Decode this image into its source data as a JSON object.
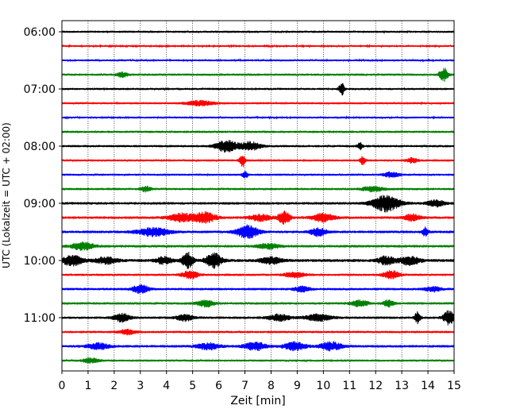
{
  "chart_data": {
    "type": "line",
    "title": "",
    "xlabel": "Zeit  [min]",
    "ylabel": "UTC (Lokalzeit = UTC + 02:00)",
    "xlim": [
      0,
      15
    ],
    "x_ticks": [
      "0",
      "1",
      "2",
      "3",
      "4",
      "5",
      "6",
      "7",
      "8",
      "9",
      "10",
      "11",
      "12",
      "13",
      "14",
      "15"
    ],
    "y_ticks": [
      {
        "label": "06:00",
        "trace": 0
      },
      {
        "label": "07:00",
        "trace": 4
      },
      {
        "label": "08:00",
        "trace": 8
      },
      {
        "label": "09:00",
        "trace": 12
      },
      {
        "label": "10:00",
        "trace": 16
      },
      {
        "label": "11:00",
        "trace": 20
      }
    ],
    "vertical_grid": true,
    "color_cycle": [
      "#000000",
      "#ff0000",
      "#0000ff",
      "#008000"
    ],
    "traces": [
      {
        "start": "06:00",
        "noise": 1.3,
        "events": []
      },
      {
        "start": "06:15",
        "noise": 1.1,
        "events": []
      },
      {
        "start": "06:30",
        "noise": 1.2,
        "events": []
      },
      {
        "start": "06:45",
        "noise": 1.4,
        "events": [
          {
            "t": 2.3,
            "amp": 3,
            "dur": 0.2
          },
          {
            "t": 14.6,
            "amp": 9,
            "dur": 0.15
          }
        ]
      },
      {
        "start": "07:00",
        "noise": 1.3,
        "events": [
          {
            "t": 10.7,
            "amp": 8,
            "dur": 0.1
          }
        ]
      },
      {
        "start": "07:15",
        "noise": 1.3,
        "events": [
          {
            "t": 5.3,
            "amp": 3,
            "dur": 0.5
          }
        ]
      },
      {
        "start": "07:30",
        "noise": 1.2,
        "events": []
      },
      {
        "start": "07:45",
        "noise": 1.4,
        "events": []
      },
      {
        "start": "08:00",
        "noise": 1.4,
        "events": [
          {
            "t": 6.3,
            "amp": 7,
            "dur": 0.4
          },
          {
            "t": 7.2,
            "amp": 5,
            "dur": 0.4
          },
          {
            "t": 11.4,
            "amp": 4,
            "dur": 0.1
          }
        ]
      },
      {
        "start": "08:15",
        "noise": 1.3,
        "events": [
          {
            "t": 6.9,
            "amp": 9,
            "dur": 0.1
          },
          {
            "t": 11.5,
            "amp": 5,
            "dur": 0.1
          },
          {
            "t": 13.4,
            "amp": 3,
            "dur": 0.2
          }
        ]
      },
      {
        "start": "08:30",
        "noise": 1.3,
        "events": [
          {
            "t": 7.0,
            "amp": 5,
            "dur": 0.1
          },
          {
            "t": 12.6,
            "amp": 3,
            "dur": 0.3
          }
        ]
      },
      {
        "start": "08:45",
        "noise": 1.4,
        "events": [
          {
            "t": 3.2,
            "amp": 3,
            "dur": 0.2
          },
          {
            "t": 11.9,
            "amp": 3,
            "dur": 0.4
          }
        ]
      },
      {
        "start": "09:00",
        "noise": 1.6,
        "events": [
          {
            "t": 12.4,
            "amp": 10,
            "dur": 0.5
          },
          {
            "t": 14.3,
            "amp": 4,
            "dur": 0.3
          }
        ]
      },
      {
        "start": "09:15",
        "noise": 1.6,
        "events": [
          {
            "t": 4.6,
            "amp": 5,
            "dur": 0.5
          },
          {
            "t": 5.5,
            "amp": 6,
            "dur": 0.4
          },
          {
            "t": 7.6,
            "amp": 4,
            "dur": 0.4
          },
          {
            "t": 8.5,
            "amp": 9,
            "dur": 0.2
          },
          {
            "t": 10.0,
            "amp": 5,
            "dur": 0.4
          },
          {
            "t": 13.4,
            "amp": 4,
            "dur": 0.3
          }
        ]
      },
      {
        "start": "09:30",
        "noise": 1.6,
        "events": [
          {
            "t": 3.5,
            "amp": 5,
            "dur": 0.6
          },
          {
            "t": 7.1,
            "amp": 8,
            "dur": 0.4
          },
          {
            "t": 9.8,
            "amp": 5,
            "dur": 0.3
          },
          {
            "t": 13.9,
            "amp": 6,
            "dur": 0.1
          }
        ]
      },
      {
        "start": "09:45",
        "noise": 1.6,
        "events": [
          {
            "t": 0.8,
            "amp": 5,
            "dur": 0.4
          },
          {
            "t": 7.9,
            "amp": 3,
            "dur": 0.4
          }
        ]
      },
      {
        "start": "10:00",
        "noise": 1.8,
        "events": [
          {
            "t": 0.4,
            "amp": 6,
            "dur": 0.4
          },
          {
            "t": 1.7,
            "amp": 4,
            "dur": 0.4
          },
          {
            "t": 3.9,
            "amp": 4,
            "dur": 0.3
          },
          {
            "t": 4.8,
            "amp": 10,
            "dur": 0.2
          },
          {
            "t": 5.8,
            "amp": 9,
            "dur": 0.3
          },
          {
            "t": 8.0,
            "amp": 4,
            "dur": 0.4
          },
          {
            "t": 12.4,
            "amp": 5,
            "dur": 0.3
          },
          {
            "t": 13.3,
            "amp": 5,
            "dur": 0.4
          }
        ]
      },
      {
        "start": "10:15",
        "noise": 1.4,
        "events": [
          {
            "t": 4.9,
            "amp": 5,
            "dur": 0.3
          },
          {
            "t": 8.9,
            "amp": 3,
            "dur": 0.4
          },
          {
            "t": 12.6,
            "amp": 5,
            "dur": 0.3
          }
        ]
      },
      {
        "start": "10:30",
        "noise": 1.5,
        "events": [
          {
            "t": 3.0,
            "amp": 5,
            "dur": 0.3
          },
          {
            "t": 9.2,
            "amp": 3,
            "dur": 0.3
          },
          {
            "t": 14.2,
            "amp": 3,
            "dur": 0.3
          }
        ]
      },
      {
        "start": "10:45",
        "noise": 1.5,
        "events": [
          {
            "t": 5.5,
            "amp": 4,
            "dur": 0.3
          },
          {
            "t": 11.4,
            "amp": 4,
            "dur": 0.3
          },
          {
            "t": 12.5,
            "amp": 4,
            "dur": 0.2
          }
        ]
      },
      {
        "start": "11:00",
        "noise": 1.5,
        "events": [
          {
            "t": 2.3,
            "amp": 5,
            "dur": 0.3
          },
          {
            "t": 4.7,
            "amp": 4,
            "dur": 0.3
          },
          {
            "t": 8.3,
            "amp": 4,
            "dur": 0.4
          },
          {
            "t": 9.8,
            "amp": 4,
            "dur": 0.5
          },
          {
            "t": 13.6,
            "amp": 7,
            "dur": 0.1
          },
          {
            "t": 14.8,
            "amp": 9,
            "dur": 0.2
          }
        ]
      },
      {
        "start": "11:15",
        "noise": 1.4,
        "events": [
          {
            "t": 2.5,
            "amp": 3,
            "dur": 0.3
          }
        ]
      },
      {
        "start": "11:30",
        "noise": 1.6,
        "events": [
          {
            "t": 1.4,
            "amp": 4,
            "dur": 0.4
          },
          {
            "t": 5.6,
            "amp": 4,
            "dur": 0.4
          },
          {
            "t": 7.4,
            "amp": 5,
            "dur": 0.4
          },
          {
            "t": 8.9,
            "amp": 5,
            "dur": 0.4
          },
          {
            "t": 10.3,
            "amp": 5,
            "dur": 0.4
          }
        ]
      },
      {
        "start": "11:45",
        "noise": 1.3,
        "events": [
          {
            "t": 1.1,
            "amp": 3,
            "dur": 0.3
          }
        ]
      }
    ]
  }
}
